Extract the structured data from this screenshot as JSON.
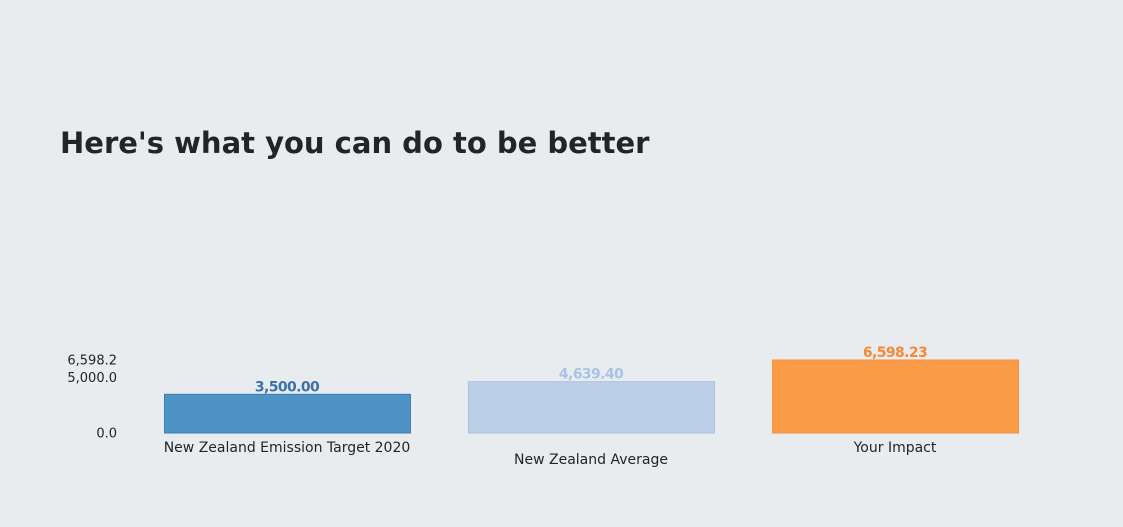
{
  "page": {
    "heading": "Here's what you can do to be better"
  },
  "chart_data": {
    "type": "bar",
    "title": "",
    "xlabel": "",
    "ylabel": "",
    "ylim": [
      0,
      6598.23
    ],
    "y_ticks": [
      0,
      5000,
      6598.23
    ],
    "y_tick_labels": [
      "0.0",
      "5,000.0",
      "6,598.2"
    ],
    "grid": false,
    "legend": "none",
    "categories": [
      "New Zealand Emission Target 2020",
      "New Zealand Average",
      "Your Impact"
    ],
    "values": [
      3500.0,
      4639.4,
      6598.23
    ],
    "value_labels": [
      "3,500.00",
      "4,639.40",
      "6,598.23"
    ],
    "colors": {
      "bar_fills": [
        "#4f93c6",
        "#bbcfe9",
        "#fb9b48"
      ],
      "bar_strokes": [
        "#3b7fb3",
        "#a9c0e0",
        "#f7913a"
      ],
      "value_label_colors": [
        "#3a72ad",
        "#a9c2e6",
        "#f7883a"
      ]
    }
  }
}
